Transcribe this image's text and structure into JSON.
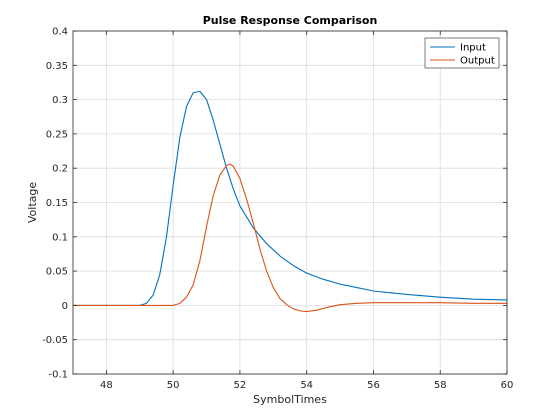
{
  "chart_data": {
    "type": "line",
    "title": "Pulse Response Comparison",
    "xlabel": "SymbolTimes",
    "ylabel": "Voltage",
    "xlim": [
      47,
      60
    ],
    "ylim": [
      -0.1,
      0.4
    ],
    "xticks": [
      48,
      50,
      52,
      54,
      56,
      58,
      60
    ],
    "yticks": [
      -0.1,
      -0.05,
      0,
      0.05,
      0.1,
      0.15,
      0.2,
      0.25,
      0.3,
      0.35,
      0.4
    ],
    "xtick_labels": [
      "48",
      "50",
      "52",
      "54",
      "56",
      "58",
      "60"
    ],
    "ytick_labels": [
      "-0.1",
      "-0.05",
      "0",
      "0.05",
      "0.1",
      "0.15",
      "0.2",
      "0.25",
      "0.3",
      "0.35",
      "0.4"
    ],
    "grid": true,
    "legend_position": "top-right",
    "series": [
      {
        "name": "Input",
        "color": "#0072BD",
        "x": [
          47,
          49,
          49.2,
          49.4,
          49.6,
          49.8,
          50,
          50.2,
          50.4,
          50.6,
          50.8,
          51,
          51.2,
          51.4,
          51.6,
          51.8,
          52,
          52.4,
          52.8,
          53.2,
          53.6,
          54,
          54.5,
          55,
          55.5,
          56,
          57,
          58,
          59,
          60
        ],
        "y": [
          0,
          0,
          0.003,
          0.015,
          0.045,
          0.1,
          0.175,
          0.245,
          0.29,
          0.31,
          0.312,
          0.3,
          0.27,
          0.235,
          0.2,
          0.17,
          0.145,
          0.113,
          0.09,
          0.072,
          0.058,
          0.047,
          0.038,
          0.031,
          0.026,
          0.021,
          0.016,
          0.012,
          0.009,
          0.008
        ]
      },
      {
        "name": "Output",
        "color": "#D95319",
        "x": [
          47,
          50,
          50.2,
          50.4,
          50.6,
          50.8,
          51,
          51.2,
          51.4,
          51.6,
          51.7,
          51.8,
          52,
          52.2,
          52.4,
          52.6,
          52.8,
          53,
          53.2,
          53.4,
          53.6,
          53.8,
          54,
          54.3,
          54.6,
          55,
          55.5,
          56,
          57,
          58,
          59,
          60
        ],
        "y": [
          0,
          0,
          0.003,
          0.012,
          0.03,
          0.065,
          0.115,
          0.16,
          0.19,
          0.204,
          0.206,
          0.203,
          0.185,
          0.155,
          0.12,
          0.082,
          0.05,
          0.026,
          0.01,
          0.001,
          -0.005,
          -0.008,
          -0.009,
          -0.007,
          -0.003,
          0.001,
          0.003,
          0.004,
          0.004,
          0.004,
          0.003,
          0.003
        ]
      }
    ]
  }
}
